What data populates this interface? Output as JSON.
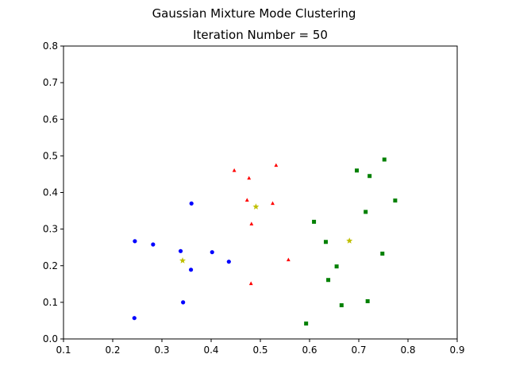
{
  "chart_data": {
    "type": "scatter",
    "suptitle": "Gaussian Mixture Mode Clustering",
    "title": "Iteration Number = 50",
    "xlabel": "",
    "ylabel": "",
    "xlim": [
      0.1,
      0.9
    ],
    "ylim": [
      0.0,
      0.8
    ],
    "xticks": [
      "0.1",
      "0.2",
      "0.3",
      "0.4",
      "0.5",
      "0.6",
      "0.7",
      "0.8",
      "0.9"
    ],
    "yticks": [
      "0.0",
      "0.1",
      "0.2",
      "0.3",
      "0.4",
      "0.5",
      "0.6",
      "0.7",
      "0.8"
    ],
    "grid": false,
    "legend": "none",
    "series": [
      {
        "color": "#0000ff",
        "marker": "circle",
        "points": [
          [
            0.245,
            0.267
          ],
          [
            0.282,
            0.258
          ],
          [
            0.338,
            0.24
          ],
          [
            0.36,
            0.37
          ],
          [
            0.359,
            0.189
          ],
          [
            0.402,
            0.237
          ],
          [
            0.436,
            0.211
          ],
          [
            0.244,
            0.057
          ],
          [
            0.343,
            0.1
          ]
        ]
      },
      {
        "color": "#ff0000",
        "marker": "triangle",
        "points": [
          [
            0.447,
            0.46
          ],
          [
            0.477,
            0.439
          ],
          [
            0.532,
            0.474
          ],
          [
            0.473,
            0.379
          ],
          [
            0.525,
            0.37
          ],
          [
            0.482,
            0.314
          ],
          [
            0.557,
            0.216
          ],
          [
            0.481,
            0.151
          ]
        ]
      },
      {
        "color": "#008000",
        "marker": "square",
        "points": [
          [
            0.696,
            0.46
          ],
          [
            0.752,
            0.49
          ],
          [
            0.722,
            0.445
          ],
          [
            0.774,
            0.378
          ],
          [
            0.714,
            0.347
          ],
          [
            0.609,
            0.32
          ],
          [
            0.633,
            0.265
          ],
          [
            0.748,
            0.233
          ],
          [
            0.655,
            0.198
          ],
          [
            0.638,
            0.161
          ],
          [
            0.718,
            0.103
          ],
          [
            0.665,
            0.092
          ],
          [
            0.593,
            0.042
          ]
        ]
      },
      {
        "color": "#bfbf00",
        "marker": "star",
        "points": [
          [
            0.342,
            0.214
          ],
          [
            0.491,
            0.361
          ],
          [
            0.681,
            0.268
          ]
        ]
      }
    ]
  }
}
